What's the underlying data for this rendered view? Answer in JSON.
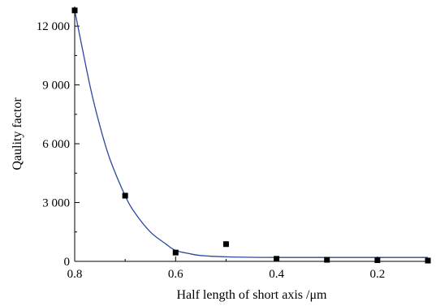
{
  "chart_data": {
    "type": "scatter",
    "xlabel": "Half length of short axis /μm",
    "ylabel": "Qaulity factor",
    "xlim": [
      0.8,
      0.1
    ],
    "ylim": [
      0,
      13000
    ],
    "x_reversed": true,
    "x_ticks": [
      0.8,
      0.6,
      0.4,
      0.2
    ],
    "x_tick_labels": [
      "0.8",
      "0.6",
      "0.4",
      "0.2"
    ],
    "y_ticks": [
      0,
      3000,
      6000,
      9000,
      12000
    ],
    "y_tick_labels": [
      "0",
      "3 000",
      "6 000",
      "9 000",
      "12 000"
    ],
    "grid": false,
    "series": [
      {
        "kind": "points",
        "marker": "square",
        "color": "#000000",
        "x": [
          0.8,
          0.7,
          0.6,
          0.5,
          0.4,
          0.3,
          0.2,
          0.1
        ],
        "y": [
          12800,
          3350,
          450,
          880,
          130,
          80,
          60,
          40
        ]
      },
      {
        "kind": "fit-line",
        "color": "#2b4a9b",
        "x": [
          0.8,
          0.77,
          0.75,
          0.73,
          0.7,
          0.68,
          0.65,
          0.62,
          0.6,
          0.57,
          0.55,
          0.5,
          0.45,
          0.4,
          0.35,
          0.3,
          0.2,
          0.1
        ],
        "y": [
          12800,
          9000,
          6900,
          5200,
          3350,
          2450,
          1500,
          900,
          560,
          380,
          300,
          230,
          205,
          200,
          200,
          200,
          200,
          200
        ]
      }
    ]
  }
}
